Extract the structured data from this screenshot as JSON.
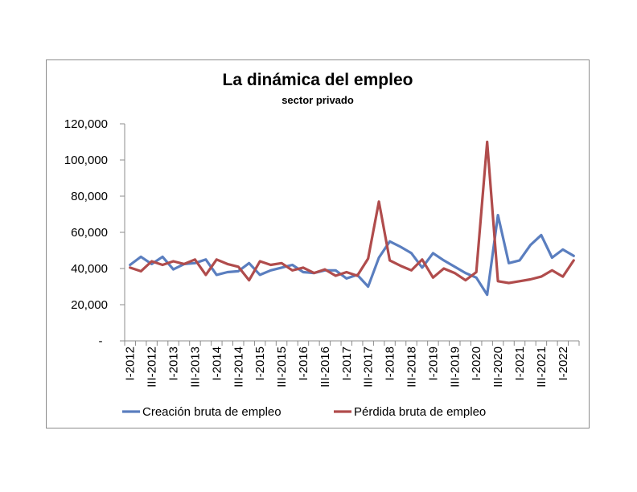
{
  "chart_data": {
    "type": "line",
    "title": "La dinámica del empleo",
    "subtitle": "sector privado",
    "xlabel": "",
    "ylabel": "",
    "ylim": [
      0,
      120000
    ],
    "y_ticks": [
      "-",
      "20,000",
      "40,000",
      "60,000",
      "80,000",
      "100,000",
      "120,000"
    ],
    "x_tick_labels": [
      "I-2012",
      "III-2012",
      "I-2013",
      "III-2013",
      "I-2014",
      "III-2014",
      "I-2015",
      "III-2015",
      "I-2016",
      "III-2016",
      "I-2017",
      "III-2017",
      "I-2018",
      "III-2018",
      "I-2019",
      "III-2019",
      "I-2020",
      "III-2020",
      "I-2021",
      "III-2021",
      "I-2022"
    ],
    "grid": false,
    "legend_position": "bottom",
    "series": [
      {
        "name": "Creación bruta de empleo",
        "color": "#5a7ebf",
        "values": [
          42000,
          46500,
          42500,
          46500,
          39500,
          42500,
          43000,
          45000,
          36500,
          38000,
          38500,
          43000,
          36500,
          39000,
          40500,
          42000,
          38000,
          37500,
          39000,
          39000,
          34500,
          36500,
          30000,
          46000,
          55000,
          52000,
          48500,
          40500,
          48500,
          44500,
          41000,
          37500,
          35000,
          25500,
          69500,
          43000,
          44500,
          53000,
          58500,
          46000,
          50500,
          47000
        ]
      },
      {
        "name": "Pérdida bruta de empleo",
        "color": "#b04c4c",
        "values": [
          40500,
          38500,
          44000,
          42000,
          44000,
          42500,
          45000,
          36500,
          45000,
          42500,
          41000,
          33500,
          44000,
          42000,
          43000,
          39000,
          40500,
          37500,
          39500,
          36000,
          38000,
          36000,
          45500,
          77000,
          44500,
          41500,
          39000,
          45000,
          35000,
          40000,
          37500,
          33500,
          38000,
          110000,
          33000,
          32000,
          33000,
          34000,
          35500,
          39000,
          35500,
          44500
        ]
      }
    ]
  }
}
